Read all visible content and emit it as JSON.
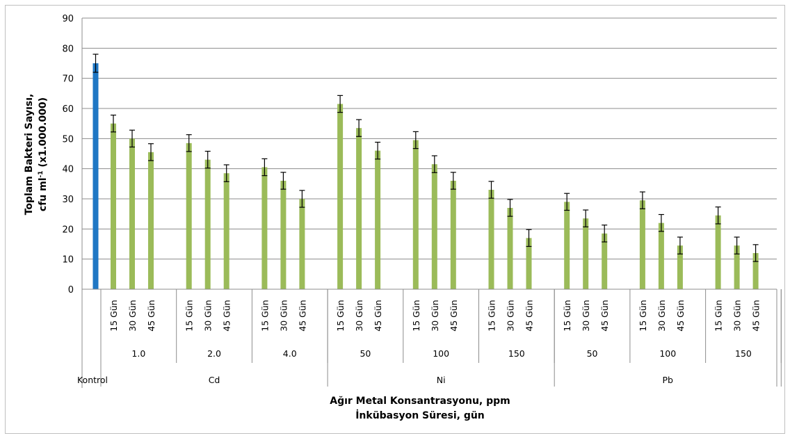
{
  "chart_data": {
    "type": "bar",
    "ylabel_line1": "Toplam Bakteri Sayısı,",
    "ylabel_line2": "cfu ml",
    "ylabel_sup": "-1",
    "ylabel_suffix": " (x1.000.000)",
    "xlabel_line1": "Ağır Metal Konsantrasyonu, ppm",
    "xlabel_line2": "İnkübasyon Süresi, gün",
    "ylim": [
      0,
      90
    ],
    "yticks": [
      0,
      10,
      20,
      30,
      40,
      50,
      60,
      70,
      80,
      90
    ],
    "grid": true,
    "colors": {
      "control": "#1f77c4",
      "treatment": "#9bbb59",
      "grid": "#8c8c8c"
    },
    "control": {
      "label": "Kontrol",
      "value": 75,
      "error": 3
    },
    "groups": [
      {
        "metal": "Cd",
        "subgroups": [
          {
            "concentration": "1.0",
            "bars": [
              {
                "label": "15 Gün",
                "value": 55,
                "error": 2.8
              },
              {
                "label": "30 Gün",
                "value": 50,
                "error": 2.8
              },
              {
                "label": "45 Gün",
                "value": 45.5,
                "error": 2.8
              }
            ]
          },
          {
            "concentration": "2.0",
            "bars": [
              {
                "label": "15 Gün",
                "value": 48.5,
                "error": 2.8
              },
              {
                "label": "30 Gün",
                "value": 43,
                "error": 2.8
              },
              {
                "label": "45 Gün",
                "value": 38.5,
                "error": 2.8
              }
            ]
          },
          {
            "concentration": "4.0",
            "bars": [
              {
                "label": "15 Gün",
                "value": 40.5,
                "error": 2.8
              },
              {
                "label": "30 Gün",
                "value": 36,
                "error": 2.8
              },
              {
                "label": "45 Gün",
                "value": 30,
                "error": 2.8
              }
            ]
          }
        ]
      },
      {
        "metal": "Ni",
        "subgroups": [
          {
            "concentration": "50",
            "bars": [
              {
                "label": "15 Gün",
                "value": 61.5,
                "error": 2.8
              },
              {
                "label": "30 Gün",
                "value": 53.5,
                "error": 2.8
              },
              {
                "label": "45 Gün",
                "value": 46,
                "error": 2.8
              }
            ]
          },
          {
            "concentration": "100",
            "bars": [
              {
                "label": "15 Gün",
                "value": 49.5,
                "error": 2.8
              },
              {
                "label": "30 Gün",
                "value": 41.5,
                "error": 2.8
              },
              {
                "label": "45 Gün",
                "value": 36,
                "error": 2.8
              }
            ]
          },
          {
            "concentration": "150",
            "bars": [
              {
                "label": "15 Gün",
                "value": 33,
                "error": 2.8
              },
              {
                "label": "30 Gün",
                "value": 27,
                "error": 2.8
              },
              {
                "label": "45 Gün",
                "value": 17,
                "error": 2.8
              }
            ]
          }
        ]
      },
      {
        "metal": "Pb",
        "subgroups": [
          {
            "concentration": "50",
            "bars": [
              {
                "label": "15 Gün",
                "value": 29,
                "error": 2.8
              },
              {
                "label": "30 Gün",
                "value": 23.5,
                "error": 2.8
              },
              {
                "label": "45 Gün",
                "value": 18.5,
                "error": 2.8
              }
            ]
          },
          {
            "concentration": "100",
            "bars": [
              {
                "label": "15 Gün",
                "value": 29.5,
                "error": 2.8
              },
              {
                "label": "30 Gün",
                "value": 22,
                "error": 2.8
              },
              {
                "label": "45 Gün",
                "value": 14.5,
                "error": 2.8
              }
            ]
          },
          {
            "concentration": "150",
            "bars": [
              {
                "label": "15 Gün",
                "value": 24.5,
                "error": 2.8
              },
              {
                "label": "30 Gün",
                "value": 14.5,
                "error": 2.8
              },
              {
                "label": "45 Gün",
                "value": 12,
                "error": 2.8
              }
            ]
          }
        ]
      }
    ]
  }
}
